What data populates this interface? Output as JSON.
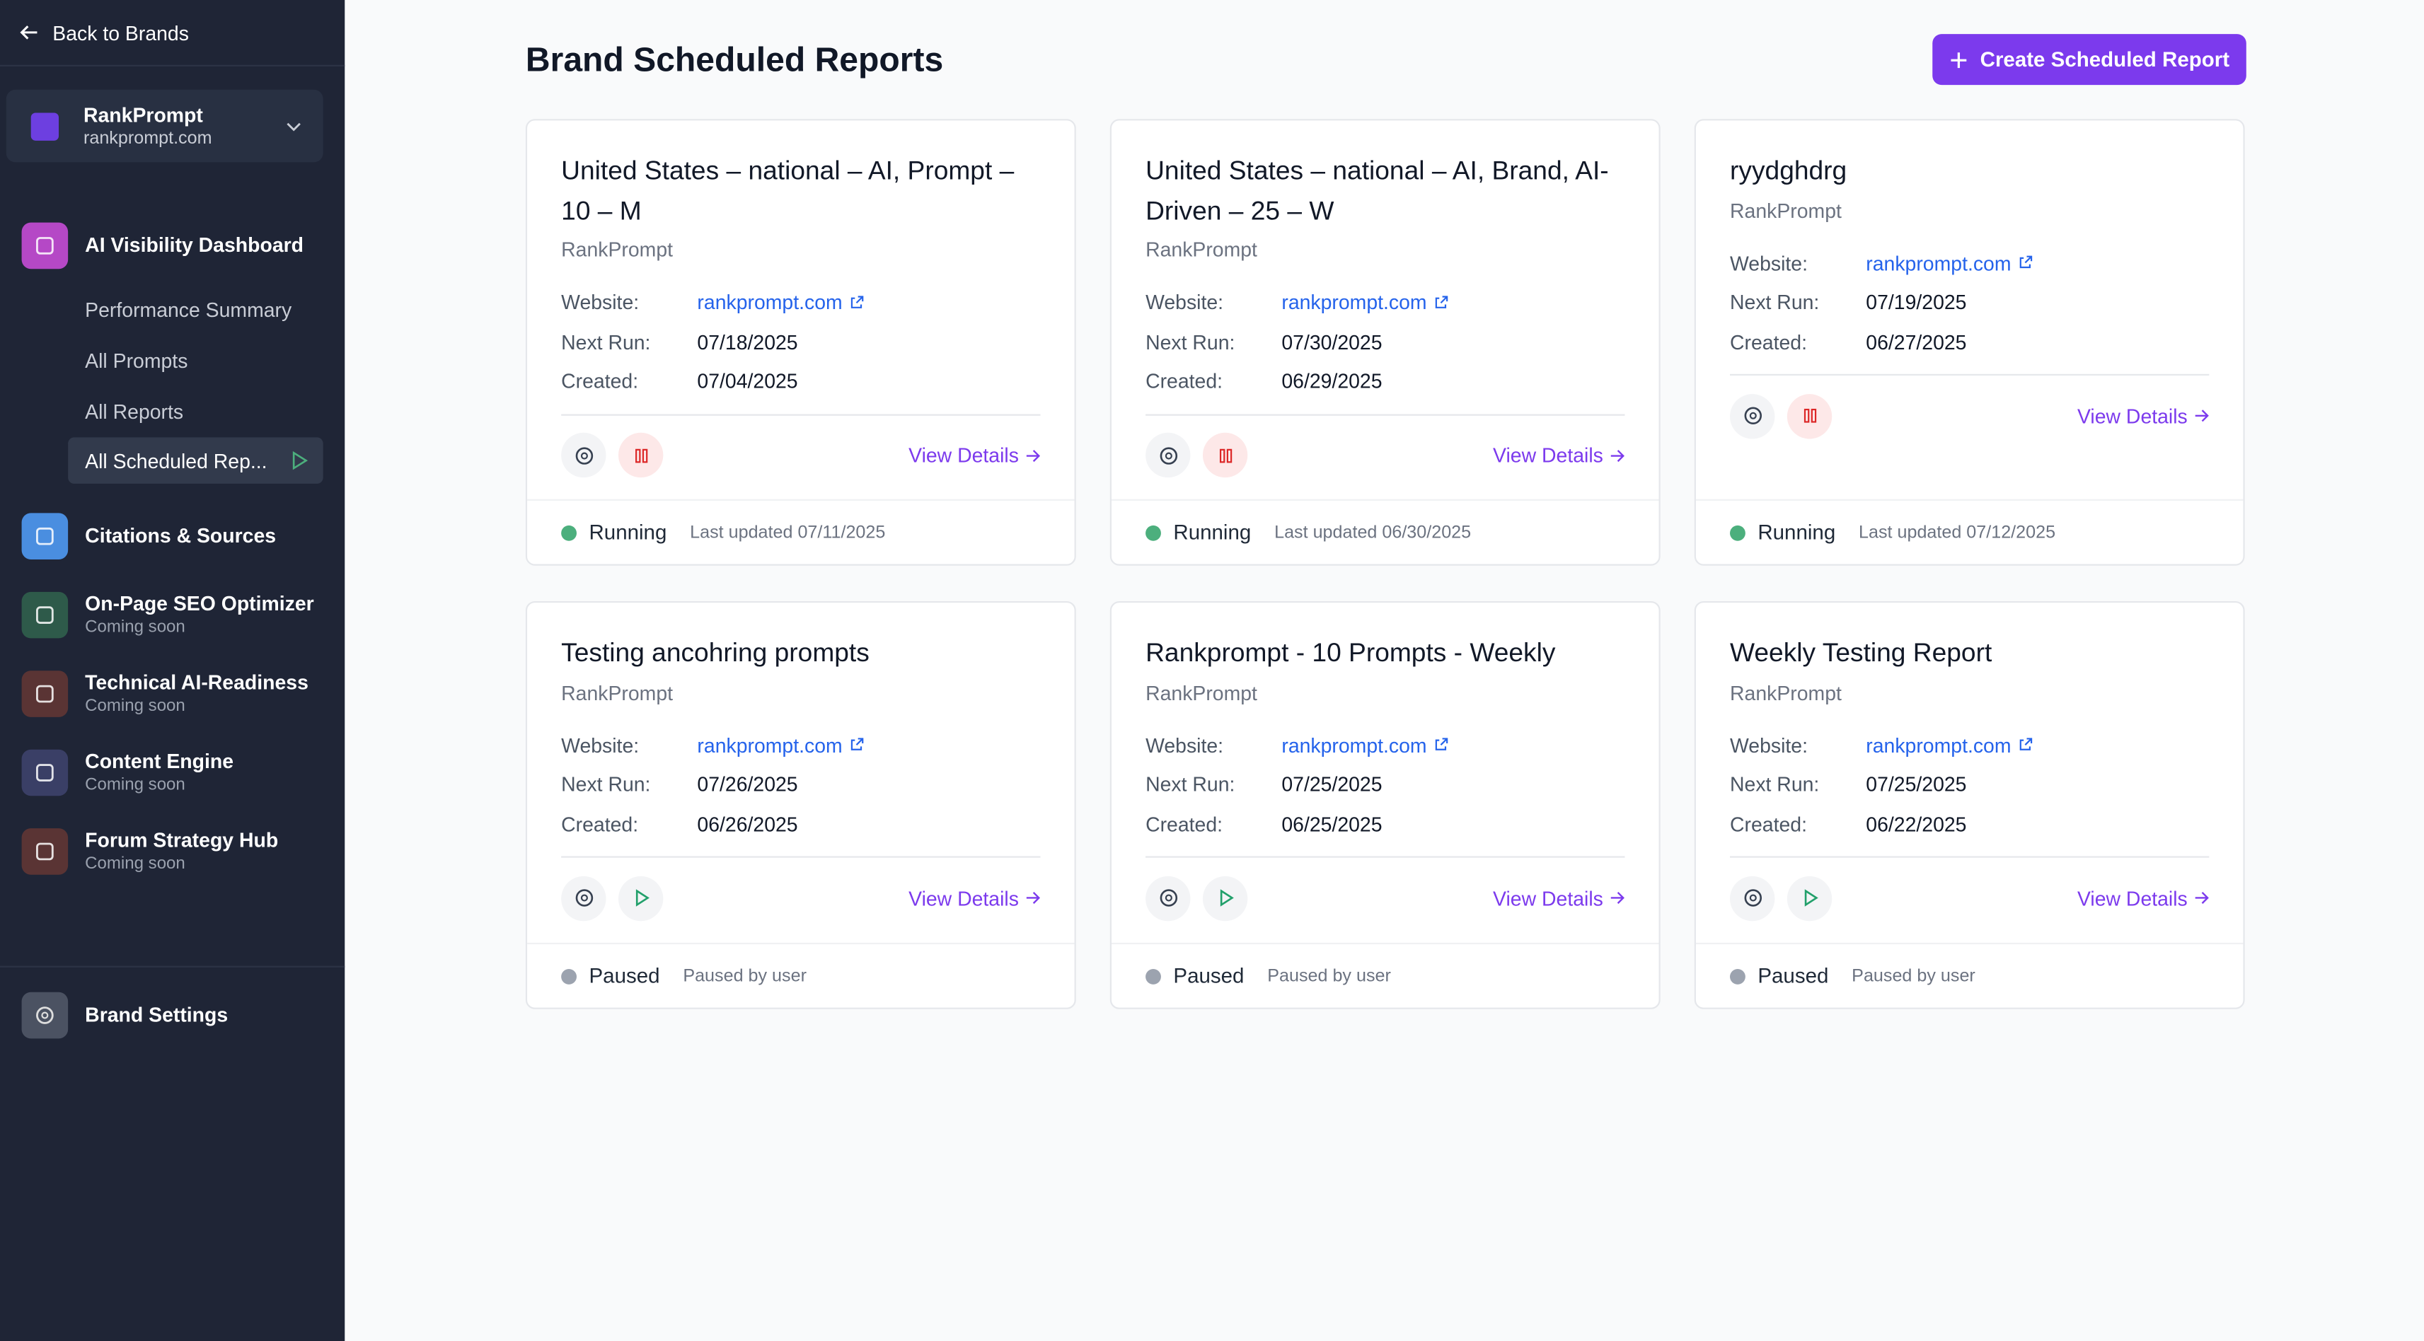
{
  "sidebar": {
    "back": "Back to Brands",
    "brand": {
      "name": "RankPrompt",
      "domain": "rankprompt.com"
    },
    "nav": [
      {
        "label": "AI Visibility Dashboard",
        "color": "#b548c6",
        "children": [
          "Performance Summary",
          "All Prompts",
          "All Reports",
          "All Scheduled Rep..."
        ]
      },
      {
        "label": "Citations & Sources",
        "color": "#4a8ee0"
      },
      {
        "label": "On-Page SEO Optimizer",
        "note": "Coming soon",
        "color": "#2e5a4a"
      },
      {
        "label": "Technical AI-Readiness",
        "note": "Coming soon",
        "color": "#5a3434"
      },
      {
        "label": "Content Engine",
        "note": "Coming soon",
        "color": "#3a3f66"
      },
      {
        "label": "Forum Strategy Hub",
        "note": "Coming soon",
        "color": "#5a3434"
      }
    ],
    "settings": "Brand Settings"
  },
  "header": {
    "title": "Brand Scheduled Reports",
    "button": "Create Scheduled Report"
  },
  "cards": [
    {
      "title": "United States – national – AI, Prompt – 10 – M",
      "brand": "RankPrompt",
      "fields": [
        {
          "label": "Website:",
          "value": "rankprompt.com"
        },
        {
          "label": "Next Run:",
          "value": "07/18/2025"
        },
        {
          "label": "Created:",
          "value": "07/04/2025"
        }
      ],
      "action": "View Details",
      "control": "pause",
      "status": "Running",
      "status_color": "#4caf7d",
      "note": "Last updated 07/11/2025"
    },
    {
      "title": "United States – national – AI, Brand, AI-Driven – 25 – W",
      "brand": "RankPrompt",
      "fields": [
        {
          "label": "Website:",
          "value": "rankprompt.com"
        },
        {
          "label": "Next Run:",
          "value": "07/30/2025"
        },
        {
          "label": "Created:",
          "value": "06/29/2025"
        }
      ],
      "action": "View Details",
      "control": "pause",
      "status": "Running",
      "status_color": "#4caf7d",
      "note": "Last updated 06/30/2025"
    },
    {
      "title": "ryydghdrg",
      "brand": "RankPrompt",
      "fields": [
        {
          "label": "Website:",
          "value": "rankprompt.com"
        },
        {
          "label": "Next Run:",
          "value": "07/19/2025"
        },
        {
          "label": "Created:",
          "value": "06/27/2025"
        }
      ],
      "action": "View Details",
      "control": "pause",
      "status": "Running",
      "status_color": "#4caf7d",
      "note": "Last updated 07/12/2025"
    },
    {
      "title": "Testing ancohring prompts",
      "brand": "RankPrompt",
      "fields": [
        {
          "label": "Website:",
          "value": "rankprompt.com"
        },
        {
          "label": "Next Run:",
          "value": "07/26/2025"
        },
        {
          "label": "Created:",
          "value": "06/26/2025"
        }
      ],
      "action": "View Details",
      "control": "play",
      "status": "Paused",
      "status_color": "#9ca3af",
      "note": "Paused by user"
    },
    {
      "title": "Rankprompt - 10 Prompts - Weekly",
      "brand": "RankPrompt",
      "fields": [
        {
          "label": "Website:",
          "value": "rankprompt.com"
        },
        {
          "label": "Next Run:",
          "value": "07/25/2025"
        },
        {
          "label": "Created:",
          "value": "06/25/2025"
        }
      ],
      "action": "View Details",
      "control": "play",
      "status": "Paused",
      "status_color": "#9ca3af",
      "note": "Paused by user"
    },
    {
      "title": "Weekly Testing Report",
      "brand": "RankPrompt",
      "fields": [
        {
          "label": "Website:",
          "value": "rankprompt.com"
        },
        {
          "label": "Next Run:",
          "value": "07/25/2025"
        },
        {
          "label": "Created:",
          "value": "06/22/2025"
        }
      ],
      "action": "View Details",
      "control": "play",
      "status": "Paused",
      "status_color": "#9ca3af",
      "note": "Paused by user"
    }
  ]
}
